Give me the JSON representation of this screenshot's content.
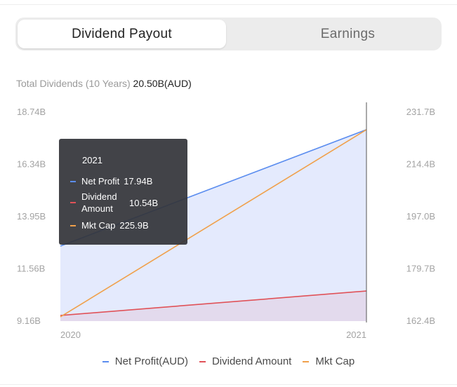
{
  "tabs": [
    {
      "label": "Dividend Payout",
      "active": true
    },
    {
      "label": "Earnings",
      "active": false
    }
  ],
  "summary": {
    "label": "Total Dividends (10 Years)",
    "value": "20.50B(AUD)"
  },
  "tooltip": {
    "title": "2021",
    "rows": [
      {
        "name": "Net Profit",
        "value": "17.94B",
        "color": "#5b8def"
      },
      {
        "name": "Dividend Amount",
        "value": "10.54B",
        "color": "#e05258"
      },
      {
        "name": "Mkt Cap",
        "value": "225.9B",
        "color": "#f0a04b"
      }
    ]
  },
  "legend": [
    {
      "label": "Net Profit(AUD)",
      "color": "#5b8def"
    },
    {
      "label": "Dividend Amount",
      "color": "#e05258"
    },
    {
      "label": "Mkt Cap",
      "color": "#f0a04b"
    }
  ],
  "chart_data": {
    "type": "line",
    "x": [
      "2020",
      "2021"
    ],
    "series": [
      {
        "name": "Net Profit(AUD)",
        "axis": "left",
        "values": [
          12.6,
          17.94
        ],
        "color": "#5b8def",
        "fill": "#dfe6fd"
      },
      {
        "name": "Dividend Amount",
        "axis": "left",
        "values": [
          9.42,
          10.54
        ],
        "color": "#e05258",
        "fill": "#e3d7ea"
      },
      {
        "name": "Mkt Cap",
        "axis": "right",
        "values": [
          163.8,
          225.9
        ],
        "color": "#f0a04b"
      }
    ],
    "left_axis": {
      "ticks": [
        "18.74B",
        "16.34B",
        "13.95B",
        "11.56B",
        "9.16B"
      ],
      "range": [
        9.16,
        18.74
      ]
    },
    "right_axis": {
      "ticks": [
        "231.7B",
        "214.4B",
        "197.0B",
        "179.7B",
        "162.4B"
      ],
      "range": [
        162.4,
        231.7
      ]
    },
    "x_ticks": [
      "2020",
      "2021"
    ],
    "cursor_at": "2021",
    "grid": false
  }
}
